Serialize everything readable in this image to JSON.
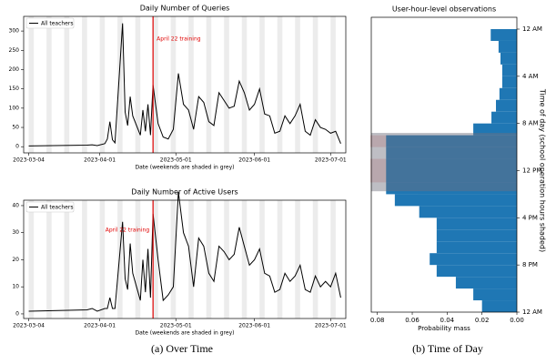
{
  "chart_data": [
    {
      "type": "line",
      "title": "Daily Number of Queries",
      "xlabel": "Date (weekends are shaded in grey)",
      "x": [
        "2023-03-04",
        "2023-03-27",
        "2023-03-29",
        "2023-03-31",
        "2023-04-03",
        "2023-04-04",
        "2023-04-05",
        "2023-04-06",
        "2023-04-07",
        "2023-04-10",
        "2023-04-11",
        "2023-04-12",
        "2023-04-13",
        "2023-04-14",
        "2023-04-17",
        "2023-04-18",
        "2023-04-19",
        "2023-04-20",
        "2023-04-21",
        "2023-04-22",
        "2023-04-24",
        "2023-04-26",
        "2023-04-28",
        "2023-04-30",
        "2023-05-02",
        "2023-05-04",
        "2023-05-06",
        "2023-05-08",
        "2023-05-10",
        "2023-05-12",
        "2023-05-14",
        "2023-05-16",
        "2023-05-18",
        "2023-05-20",
        "2023-05-22",
        "2023-05-24",
        "2023-05-26",
        "2023-05-28",
        "2023-05-30",
        "2023-06-01",
        "2023-06-03",
        "2023-06-05",
        "2023-06-07",
        "2023-06-09",
        "2023-06-11",
        "2023-06-13",
        "2023-06-15",
        "2023-06-17",
        "2023-06-19",
        "2023-06-21",
        "2023-06-23",
        "2023-06-25",
        "2023-06-27",
        "2023-06-29",
        "2023-07-01",
        "2023-07-03",
        "2023-07-05"
      ],
      "series": [
        {
          "name": "All teachers",
          "color": "#000000",
          "values": [
            2,
            4,
            5,
            3,
            8,
            20,
            65,
            18,
            10,
            320,
            90,
            55,
            130,
            80,
            30,
            95,
            40,
            110,
            30,
            160,
            60,
            25,
            20,
            45,
            190,
            110,
            95,
            45,
            130,
            115,
            65,
            55,
            140,
            120,
            100,
            105,
            170,
            140,
            95,
            110,
            150,
            85,
            80,
            35,
            40,
            80,
            60,
            80,
            110,
            40,
            30,
            70,
            50,
            45,
            35,
            40,
            8
          ]
        }
      ],
      "annotation": {
        "text": "April 22 training",
        "x": "2023-04-22",
        "color": "#e00000"
      },
      "xlim": [
        "2023-03-02",
        "2023-07-07"
      ],
      "xticks": [
        "2023-03-04",
        "2023-04-01",
        "2023-05-01",
        "2023-06-01",
        "2023-07-01"
      ],
      "ylim": [
        -16,
        338
      ],
      "yticks": [
        0,
        50,
        100,
        150,
        200,
        250,
        300
      ],
      "weekend_shading": true,
      "legend": "upper left"
    },
    {
      "type": "line",
      "title": "Daily Number of Active Users",
      "xlabel": "Date (weekends are shaded in grey)",
      "x": [
        "2023-03-04",
        "2023-03-27",
        "2023-03-29",
        "2023-03-31",
        "2023-04-03",
        "2023-04-04",
        "2023-04-05",
        "2023-04-06",
        "2023-04-07",
        "2023-04-10",
        "2023-04-11",
        "2023-04-12",
        "2023-04-13",
        "2023-04-14",
        "2023-04-17",
        "2023-04-18",
        "2023-04-19",
        "2023-04-20",
        "2023-04-21",
        "2023-04-22",
        "2023-04-24",
        "2023-04-26",
        "2023-04-28",
        "2023-04-30",
        "2023-05-02",
        "2023-05-04",
        "2023-05-06",
        "2023-05-08",
        "2023-05-10",
        "2023-05-12",
        "2023-05-14",
        "2023-05-16",
        "2023-05-18",
        "2023-05-20",
        "2023-05-22",
        "2023-05-24",
        "2023-05-26",
        "2023-05-28",
        "2023-05-30",
        "2023-06-01",
        "2023-06-03",
        "2023-06-05",
        "2023-06-07",
        "2023-06-09",
        "2023-06-11",
        "2023-06-13",
        "2023-06-15",
        "2023-06-17",
        "2023-06-19",
        "2023-06-21",
        "2023-06-23",
        "2023-06-25",
        "2023-06-27",
        "2023-06-29",
        "2023-07-01",
        "2023-07-03",
        "2023-07-05"
      ],
      "series": [
        {
          "name": "All teachers",
          "color": "#000000",
          "values": [
            1,
            1.5,
            2,
            1,
            2,
            2,
            6,
            2,
            2,
            34,
            13,
            9,
            26,
            15,
            5,
            20,
            8,
            24,
            6,
            37,
            20,
            5,
            7,
            10,
            45,
            30,
            25,
            10,
            28,
            25,
            15,
            12,
            25,
            23,
            20,
            22,
            32,
            25,
            18,
            20,
            24,
            15,
            14,
            8,
            9,
            15,
            12,
            14,
            18,
            9,
            8,
            14,
            10,
            12,
            10,
            15,
            6
          ]
        }
      ],
      "annotation": {
        "text": "April 22 training",
        "x": "2023-04-22",
        "color": "#e00000"
      },
      "xlim": [
        "2023-03-02",
        "2023-07-07"
      ],
      "xticks": [
        "2023-03-04",
        "2023-04-01",
        "2023-05-01",
        "2023-06-01",
        "2023-07-01"
      ],
      "ylim": [
        -1.7,
        42
      ],
      "yticks": [
        0,
        10,
        20,
        30,
        40
      ],
      "weekend_shading": true,
      "legend": "upper left"
    },
    {
      "type": "histogram",
      "orientation": "horizontal",
      "title": "User-hour-level observations",
      "xlabel": "Probability mass",
      "ylabel": "Time of day (school operation hours shaded)",
      "bins": [
        0,
        1,
        2,
        3,
        4,
        5,
        6,
        7,
        8,
        9,
        10,
        11,
        12,
        13,
        14,
        15,
        16,
        17,
        18,
        19,
        20,
        21,
        22,
        23,
        24
      ],
      "series": [
        {
          "color": "#f6d6d6",
          "values": [
            null,
            null,
            null,
            null,
            null,
            null,
            null,
            null,
            null,
            0.084,
            0.073,
            0.084,
            0.084,
            0.057,
            null,
            null,
            null,
            null,
            null,
            null,
            null,
            null,
            null,
            null
          ]
        },
        {
          "color": "#1f77b4",
          "values": [
            0.015,
            0.0105,
            0.0094,
            0.0084,
            0.0084,
            0.01,
            0.012,
            0.0146,
            0.025,
            0.075,
            0.075,
            0.075,
            0.075,
            0.075,
            0.07,
            0.056,
            0.046,
            0.046,
            0.046,
            0.05,
            0.046,
            0.035,
            0.025,
            0.02
          ]
        }
      ],
      "shaded_span": [
        8.8,
        13.75
      ],
      "xlim": [
        0.0835,
        0
      ],
      "xticks": [
        0.08,
        0.06,
        0.04,
        0.02,
        {
          "value": 0,
          "label": "0.00"
        }
      ],
      "ylim": [
        24,
        0
      ],
      "yticks": [
        {
          "value": 0,
          "label": "12 AM"
        },
        {
          "value": 4,
          "label": "4 AM"
        },
        {
          "value": 8,
          "label": "8 AM"
        },
        {
          "value": 12,
          "label": "12 PM"
        },
        {
          "value": 16,
          "label": "4 PM"
        },
        {
          "value": 20,
          "label": "8 PM"
        },
        {
          "value": 24,
          "label": "12 AM"
        }
      ]
    }
  ],
  "captions": [
    "(a) Over Time",
    "(b) Time of Day"
  ]
}
